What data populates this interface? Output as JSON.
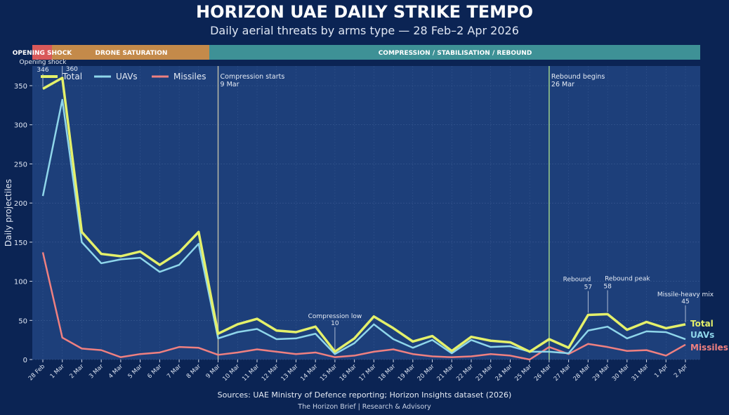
{
  "header": {
    "title": "HORIZON UAE DAILY STRIKE TEMPO",
    "subtitle": "Daily aerial threats by arms type — 28 Feb–2 Apr 2026"
  },
  "footer": {
    "sources": "Sources: UAE Ministry of Defence reporting; Horizon Insights dataset (2026)",
    "brand": "The Horizon Brief | Research & Advisory"
  },
  "chart_data": {
    "type": "line",
    "ylabel": "Daily projectiles",
    "ylim": [
      0,
      375
    ],
    "yticks": [
      0,
      50,
      100,
      150,
      200,
      250,
      300,
      350
    ],
    "categories": [
      "28 Feb",
      "1 Mar",
      "2 Mar",
      "3 Mar",
      "4 Mar",
      "5 Mar",
      "6 Mar",
      "7 Mar",
      "8 Mar",
      "9 Mar",
      "10 Mar",
      "11 Mar",
      "12 Mar",
      "13 Mar",
      "14 Mar",
      "15 Mar",
      "16 Mar",
      "17 Mar",
      "18 Mar",
      "19 Mar",
      "20 Mar",
      "21 Mar",
      "22 Mar",
      "23 Mar",
      "24 Mar",
      "25 Mar",
      "26 Mar",
      "27 Mar",
      "28 Mar",
      "29 Mar",
      "30 Mar",
      "31 Mar",
      "1 Apr",
      "2 Apr"
    ],
    "series": [
      {
        "name": "Total",
        "color": "#e4f06a",
        "values": [
          346,
          360,
          163,
          135,
          132,
          138,
          121,
          137,
          163,
          33,
          45,
          52,
          37,
          35,
          42,
          10,
          27,
          55,
          40,
          23,
          30,
          11,
          29,
          24,
          22,
          10,
          26,
          15,
          57,
          58,
          38,
          48,
          40,
          45
        ]
      },
      {
        "name": "UAVs",
        "color": "#8fd6ea",
        "values": [
          209,
          332,
          150,
          123,
          128,
          130,
          112,
          121,
          148,
          27,
          35,
          39,
          26,
          27,
          33,
          7,
          21,
          45,
          26,
          15,
          25,
          8,
          25,
          16,
          17,
          10,
          10,
          8,
          37,
          42,
          27,
          36,
          35,
          26
        ]
      },
      {
        "name": "Missiles",
        "color": "#ef8080",
        "values": [
          137,
          28,
          14,
          12,
          3,
          7,
          9,
          16,
          15,
          6,
          9,
          13,
          10,
          7,
          9,
          3,
          5,
          10,
          13,
          7,
          4,
          3,
          4,
          7,
          5,
          0,
          16,
          7,
          20,
          16,
          11,
          12,
          5,
          19
        ]
      }
    ],
    "phases": [
      {
        "label": "OPENING SHOCK",
        "start": 0,
        "end": 1,
        "color": "#d9595a"
      },
      {
        "label": "DRONE SATURATION",
        "start": 1,
        "end": 9,
        "color": "#c48a4a"
      },
      {
        "label": "COMPRESSION / STABILISATION / REBOUND",
        "start": 9,
        "end": 34,
        "color": "#3e9196"
      }
    ],
    "vlines": [
      {
        "index": 9,
        "label": "Compression starts",
        "date": "9 Mar",
        "color": "#b9b9a8"
      },
      {
        "index": 26,
        "label": "Rebound begins",
        "date": "26 Mar",
        "color": "#9fd08a"
      }
    ],
    "annotations": [
      {
        "index": 0,
        "label": "Opening shock",
        "value": "346"
      },
      {
        "index": 1,
        "label": "",
        "value": "360"
      },
      {
        "index": 15,
        "label": "Compression low",
        "value": "10"
      },
      {
        "index": 28,
        "label": "Rebound",
        "value": "57"
      },
      {
        "index": 29,
        "label": "Rebound peak",
        "value": "58"
      },
      {
        "index": 33,
        "label": "Missile-heavy mix",
        "value": "45"
      }
    ],
    "legend": "top-left",
    "end_labels": [
      "Total",
      "UAVs",
      "Missiles"
    ]
  }
}
